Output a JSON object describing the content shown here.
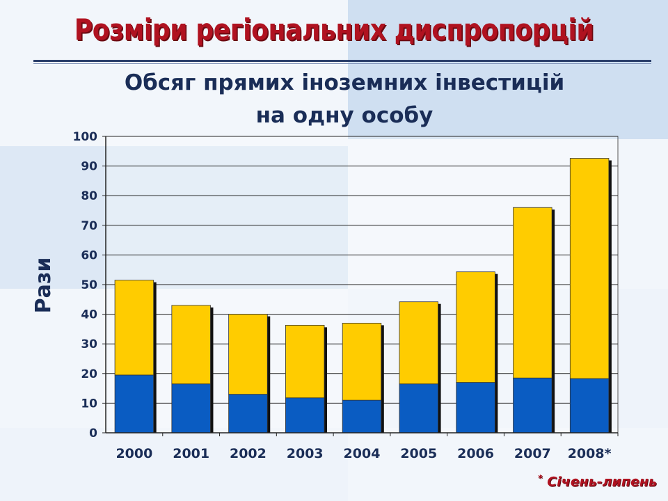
{
  "slide": {
    "title": "Розміри регіональних диспропорцій",
    "footnote": "Січень-липень",
    "footnote_mark": "*"
  },
  "colors": {
    "title": "#b01220",
    "bottom_series": "#0a5cc2",
    "top_series": "#ffcc00",
    "axis_text": "#1a2d57"
  },
  "chart_data": {
    "type": "bar",
    "stacked": true,
    "title_lines": [
      "Обсяг прямих іноземних інвестицій",
      "на одну особу"
    ],
    "ylabel": "Рази",
    "xlabel": "",
    "ylim": [
      0,
      100
    ],
    "yticks": [
      0,
      10,
      20,
      30,
      40,
      50,
      60,
      70,
      80,
      90,
      100
    ],
    "grid": true,
    "categories": [
      "2000",
      "2001",
      "2002",
      "2003",
      "2004",
      "2005",
      "2006",
      "2007",
      "2008*"
    ],
    "series": [
      {
        "values": [
          19.5,
          16.5,
          13,
          11.8,
          11,
          16.5,
          17,
          18.5,
          18.3
        ]
      },
      {
        "values": [
          32,
          26.5,
          27,
          24.5,
          26,
          27.7,
          37.3,
          57.5,
          74.3
        ]
      }
    ]
  }
}
